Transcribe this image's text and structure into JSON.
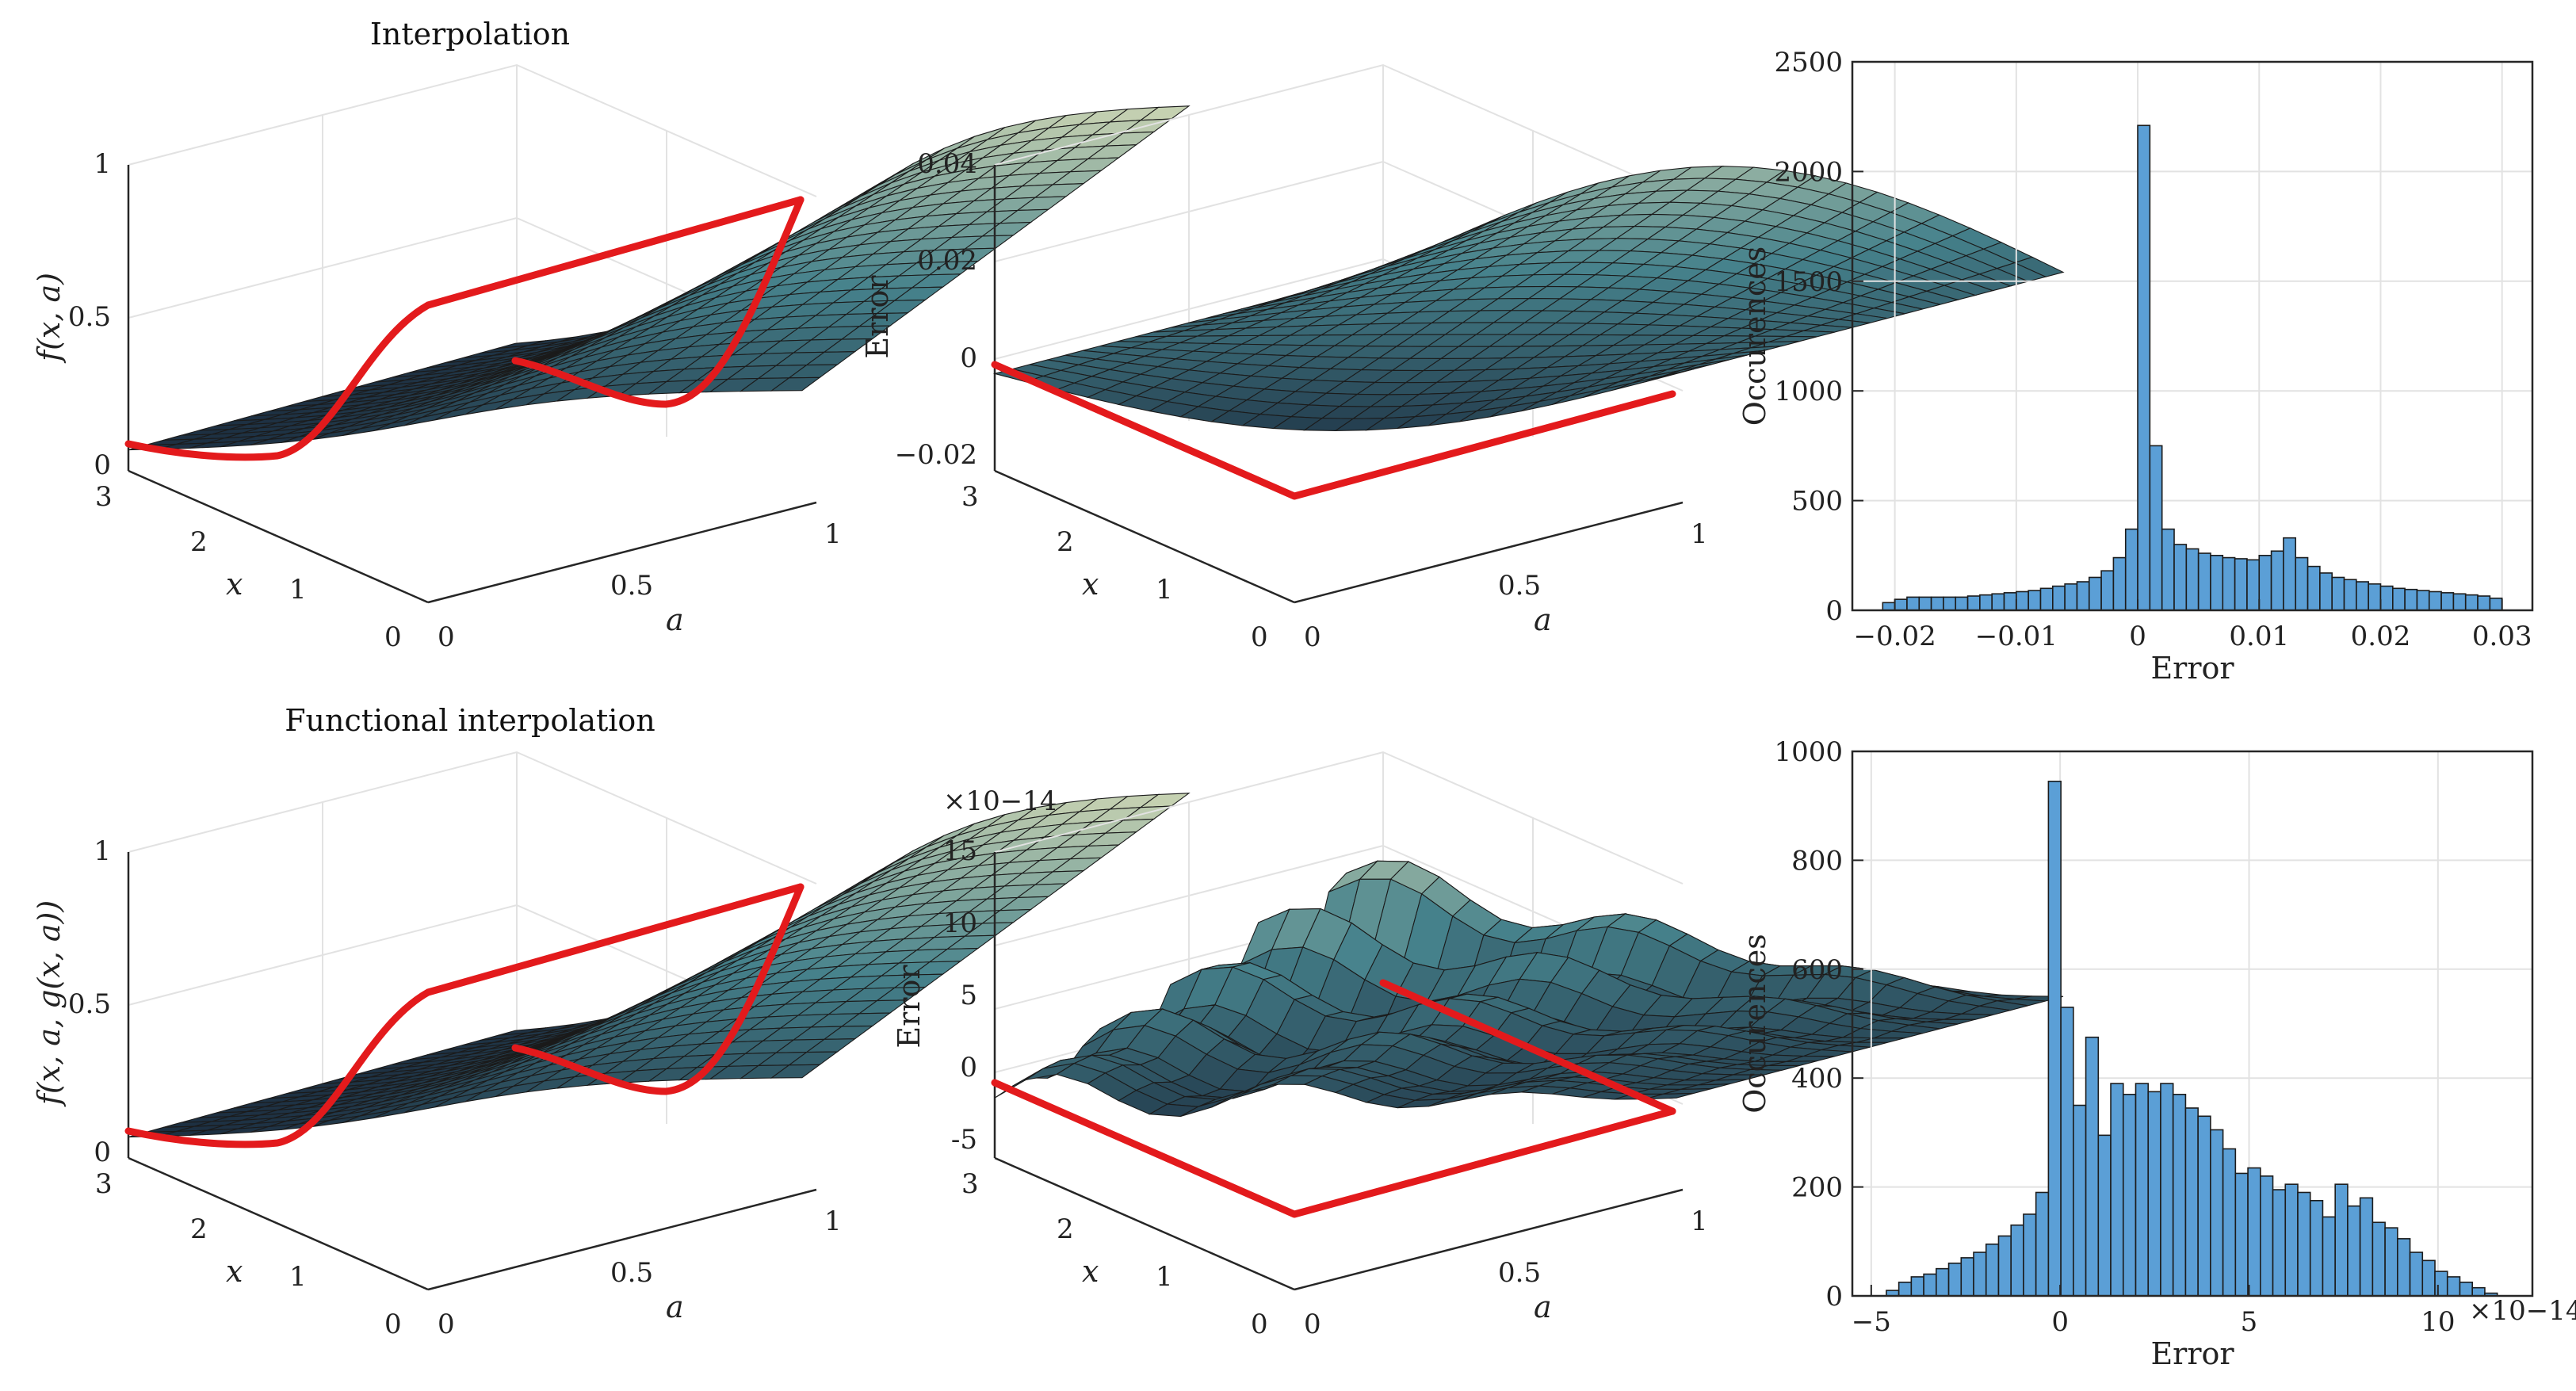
{
  "panels": {
    "interp3d": {
      "title": "Interpolation",
      "zlabel": "f(x, a)",
      "xlabel": "x",
      "alabel": "a",
      "zticks": [
        "0",
        "0.5",
        "1"
      ],
      "xticks": [
        "3",
        "2",
        "1",
        "0"
      ],
      "aticks": [
        "0",
        "0.5",
        "1"
      ]
    },
    "interpErr3d": {
      "zlabel": "Error",
      "xlabel": "x",
      "alabel": "a",
      "zticks": [
        "0.04",
        "0.02",
        "0",
        "−0.02"
      ],
      "xticks": [
        "3",
        "2",
        "1",
        "0"
      ],
      "aticks": [
        "0",
        "0.5",
        "1"
      ]
    },
    "func3d": {
      "title": "Functional interpolation",
      "zlabel": "f(x, a, g(x, a))",
      "xlabel": "x",
      "alabel": "a",
      "zticks": [
        "0",
        "0.5",
        "1"
      ],
      "xticks": [
        "3",
        "2",
        "1",
        "0"
      ],
      "aticks": [
        "0",
        "0.5",
        "1"
      ]
    },
    "funcErr3d": {
      "zlabel": "Error",
      "xlabel": "x",
      "alabel": "a",
      "exponent": "×10−14",
      "zticks": [
        "15",
        "10",
        "5",
        "0",
        "-5"
      ],
      "xticks": [
        "3",
        "2",
        "1",
        "0"
      ],
      "aticks": [
        "0",
        "0.5",
        "1"
      ]
    }
  },
  "chart_data": [
    {
      "type": "bar",
      "id": "hist-interp",
      "title": "",
      "xlabel": "Error",
      "ylabel": "Occurences",
      "xlim": [
        -0.0235,
        0.0325
      ],
      "ylim": [
        0,
        2500
      ],
      "xticks": [
        -0.02,
        -0.01,
        0,
        0.01,
        0.02,
        0.03
      ],
      "xtick_labels": [
        "−0.02",
        "−0.01",
        "0",
        "0.01",
        "0.02",
        "0.03"
      ],
      "yticks": [
        0,
        500,
        1000,
        1500,
        2000,
        2500
      ],
      "bin_start": -0.021,
      "bin_width": 0.001,
      "values": [
        35,
        50,
        60,
        60,
        60,
        60,
        60,
        65,
        70,
        75,
        80,
        85,
        90,
        100,
        110,
        120,
        130,
        150,
        180,
        240,
        370,
        2210,
        750,
        370,
        300,
        280,
        260,
        250,
        240,
        235,
        230,
        250,
        270,
        330,
        240,
        200,
        170,
        150,
        140,
        130,
        120,
        110,
        100,
        95,
        90,
        85,
        80,
        75,
        70,
        65,
        55
      ]
    },
    {
      "type": "bar",
      "id": "hist-func",
      "title": "",
      "xlabel": "Error",
      "ylabel": "Occurences",
      "exponent": "×10−14",
      "xlim": [
        -5.5,
        12.5
      ],
      "ylim": [
        0,
        1000
      ],
      "xticks": [
        -5,
        0,
        5,
        10
      ],
      "xtick_labels": [
        "−5",
        "0",
        "5",
        "10"
      ],
      "yticks": [
        0,
        200,
        400,
        600,
        800,
        1000
      ],
      "bin_start": -4.6,
      "bin_width": 0.33,
      "values": [
        10,
        25,
        35,
        40,
        50,
        60,
        70,
        80,
        95,
        110,
        130,
        150,
        190,
        945,
        530,
        350,
        475,
        295,
        390,
        370,
        390,
        375,
        390,
        370,
        345,
        330,
        305,
        270,
        225,
        235,
        220,
        195,
        205,
        190,
        175,
        145,
        205,
        165,
        180,
        135,
        125,
        105,
        80,
        65,
        45,
        35,
        25,
        15,
        5
      ]
    }
  ]
}
